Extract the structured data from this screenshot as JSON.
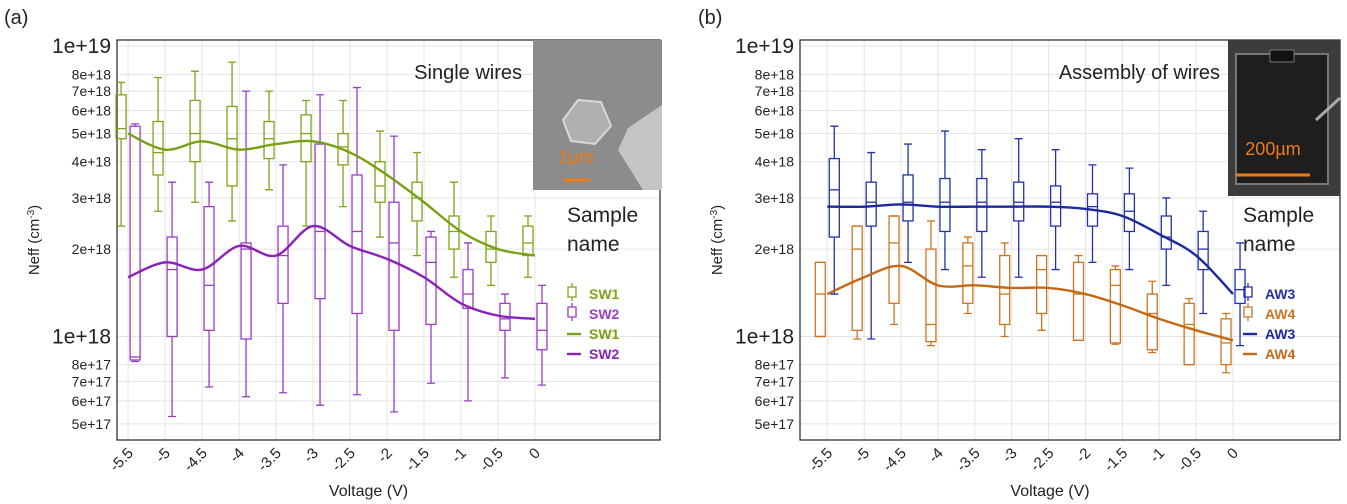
{
  "chart_data": [
    {
      "type": "box",
      "panel_label": "(a)",
      "annotation": "Single wires",
      "inset_label": "1µm",
      "ylabel": [
        "Neff (cm",
        "-3",
        ")"
      ],
      "xlabel": "Voltage (V)",
      "legend_title": [
        "Sample",
        "name"
      ],
      "ylog": true,
      "grid": true,
      "x": [
        -5.5,
        -5,
        -4.5,
        -4,
        -3.5,
        -3,
        -2.5,
        -2,
        -1.5,
        -1,
        -0.5,
        0
      ],
      "xlim": [
        -5.65,
        1.69
      ],
      "xticks": [
        -5.5,
        -5,
        -4.5,
        -4,
        -3.5,
        -3,
        -2.5,
        -2,
        -1.5,
        -1,
        -0.5,
        0
      ],
      "ylim": [
        4.4e+17,
        1.05e+19
      ],
      "yticks": [
        {
          "value": 1e+19,
          "label": "1e+19"
        },
        {
          "value": 8e+18,
          "label": "8e+18"
        },
        {
          "value": 7e+18,
          "label": "7e+18"
        },
        {
          "value": 6e+18,
          "label": "6e+18"
        },
        {
          "value": 5e+18,
          "label": "5e+18"
        },
        {
          "value": 4e+18,
          "label": "4e+18"
        },
        {
          "value": 3e+18,
          "label": "3e+18"
        },
        {
          "value": 2e+18,
          "label": "2e+18"
        },
        {
          "value": 1e+18,
          "label": "1e+18"
        },
        {
          "value": 8e+17,
          "label": "8e+17"
        },
        {
          "value": 7e+17,
          "label": "7e+17"
        },
        {
          "value": 6e+17,
          "label": "6e+17"
        },
        {
          "value": 5e+17,
          "label": "5e+17"
        }
      ],
      "series": [
        {
          "name": "SW1",
          "color": "#7fa31a",
          "min": [
            2.4e+18,
            2.7e+18,
            2.9e+18,
            2.5e+18,
            3.2e+18,
            2.4e+18,
            2.8e+18,
            2.2e+18,
            1.9e+18,
            1.6e+18,
            1.5e+18,
            1.6e+18
          ],
          "q1": [
            4.8e+18,
            3.6e+18,
            4e+18,
            3.3e+18,
            4.1e+18,
            4e+18,
            3.9e+18,
            2.9e+18,
            2.5e+18,
            2e+18,
            1.8e+18,
            1.9e+18
          ],
          "median": [
            5.2e+18,
            4.3e+18,
            5e+18,
            4.8e+18,
            4.8e+18,
            5e+18,
            4.5e+18,
            3.3e+18,
            3e+18,
            2.3e+18,
            2e+18,
            2.1e+18
          ],
          "q3": [
            6.8e+18,
            5.5e+18,
            6.5e+18,
            6.2e+18,
            5.5e+18,
            5.8e+18,
            5e+18,
            4e+18,
            3.4e+18,
            2.6e+18,
            2.3e+18,
            2.4e+18
          ],
          "max": [
            7.5e+18,
            7.8e+18,
            8.2e+18,
            8.8e+18,
            7e+18,
            6.5e+18,
            6.5e+18,
            5.1e+18,
            4.3e+18,
            3.4e+18,
            2.6e+18,
            2.6e+18
          ]
        },
        {
          "name": "SW2",
          "color": "#9a3cc4",
          "min": [
            8.2e+17,
            5.3e+17,
            6.7e+17,
            6.2e+17,
            6.4e+17,
            5.8e+17,
            6.3e+17,
            5.5e+17,
            6.9e+17,
            6e+17,
            7.2e+17,
            6.8e+17
          ],
          "q1": [
            8.3e+17,
            1e+18,
            1.05e+18,
            9.8e+17,
            1.3e+18,
            1.35e+18,
            1.2e+18,
            1.05e+18,
            1.1e+18,
            1.25e+18,
            1.05e+18,
            9e+17
          ],
          "median": [
            8.5e+17,
            1.7e+18,
            1.5e+18,
            2e+18,
            1.9e+18,
            2.3e+18,
            2.3e+18,
            2.1e+18,
            1.8e+18,
            1.4e+18,
            1.15e+18,
            1.05e+18
          ],
          "q3": [
            5.3e+18,
            2.2e+18,
            2.8e+18,
            2.1e+18,
            2.4e+18,
            4.6e+18,
            3.6e+18,
            2.9e+18,
            2.2e+18,
            1.7e+18,
            1.3e+18,
            1.3e+18
          ],
          "max": [
            5.4e+18,
            3.4e+18,
            3.4e+18,
            7e+18,
            3.9e+18,
            6.8e+18,
            7.2e+18,
            4.9e+18,
            2.3e+18,
            2.1e+18,
            1.4e+18,
            1.5e+18
          ]
        }
      ],
      "lines": [
        {
          "name": "SW1",
          "color": "#76a112",
          "values": [
            5e+18,
            4.4e+18,
            4.7e+18,
            4.4e+18,
            4.6e+18,
            4.7e+18,
            4.3e+18,
            3.6e+18,
            2.9e+18,
            2.3e+18,
            2e+18,
            1.9e+18
          ]
        },
        {
          "name": "SW2",
          "color": "#8a22b8",
          "values": [
            1.6e+18,
            1.8e+18,
            1.7e+18,
            2.05e+18,
            1.9e+18,
            2.4e+18,
            2.05e+18,
            1.85e+18,
            1.6e+18,
            1.3e+18,
            1.18e+18,
            1.15e+18
          ]
        }
      ]
    },
    {
      "type": "box",
      "panel_label": "(b)",
      "annotation": "Assembly of wires",
      "inset_label": "200µm",
      "ylabel": [
        "Neff (cm",
        "-3",
        ")"
      ],
      "xlabel": "Voltage (V)",
      "legend_title": [
        "Sample",
        "name"
      ],
      "ylog": true,
      "grid": true,
      "x": [
        -5.5,
        -5,
        -4.5,
        -4,
        -3.5,
        -3,
        -2.5,
        -2,
        -1.5,
        -1,
        -0.5,
        0
      ],
      "xlim": [
        -5.87,
        1.45
      ],
      "xticks": [
        -5.5,
        -5,
        -4.5,
        -4,
        -3.5,
        -3,
        -2.5,
        -2,
        -1.5,
        -1,
        -0.5,
        0
      ],
      "ylim": [
        4.4e+17,
        1.05e+19
      ],
      "yticks": [
        {
          "value": 1e+19,
          "label": "1e+19"
        },
        {
          "value": 8e+18,
          "label": "8e+18"
        },
        {
          "value": 7e+18,
          "label": "7e+18"
        },
        {
          "value": 6e+18,
          "label": "6e+18"
        },
        {
          "value": 5e+18,
          "label": "5e+18"
        },
        {
          "value": 4e+18,
          "label": "4e+18"
        },
        {
          "value": 3e+18,
          "label": "3e+18"
        },
        {
          "value": 2e+18,
          "label": "2e+18"
        },
        {
          "value": 1e+18,
          "label": "1e+18"
        },
        {
          "value": 8e+17,
          "label": "8e+17"
        },
        {
          "value": 7e+17,
          "label": "7e+17"
        },
        {
          "value": 6e+17,
          "label": "6e+17"
        },
        {
          "value": 5e+17,
          "label": "5e+17"
        }
      ],
      "series": [
        {
          "name": "AW3",
          "color": "#2233a6",
          "min": [
            1.4e+18,
            9.8e+17,
            1.8e+18,
            1.7e+18,
            1.6e+18,
            1.6e+18,
            1.7e+18,
            1.8e+18,
            1.7e+18,
            1.5e+18,
            1.2e+18,
            9.3e+17
          ],
          "q1": [
            2.2e+18,
            2.4e+18,
            2.5e+18,
            2.3e+18,
            2.3e+18,
            2.5e+18,
            2.4e+18,
            2.4e+18,
            2.3e+18,
            2e+18,
            1.7e+18,
            1.3e+18
          ],
          "median": [
            3.2e+18,
            2.9e+18,
            2.9e+18,
            2.9e+18,
            2.9e+18,
            2.9e+18,
            2.9e+18,
            2.8e+18,
            2.7e+18,
            2.2e+18,
            2e+18,
            1.45e+18
          ],
          "q3": [
            4.1e+18,
            3.4e+18,
            3.6e+18,
            3.5e+18,
            3.5e+18,
            3.4e+18,
            3.3e+18,
            3.1e+18,
            3.1e+18,
            2.6e+18,
            2.3e+18,
            1.7e+18
          ],
          "max": [
            5.3e+18,
            4.3e+18,
            4.6e+18,
            5.1e+18,
            4.4e+18,
            4.8e+18,
            4.4e+18,
            3.9e+18,
            3.8e+18,
            3e+18,
            2.7e+18,
            2.1e+18
          ]
        },
        {
          "name": "AW4",
          "color": "#cc7420",
          "min": [
            1e+18,
            9.8e+17,
            1.1e+18,
            9.3e+17,
            1.2e+18,
            1e+18,
            1.05e+18,
            9.7e+17,
            9.4e+17,
            8.8e+17,
            8e+17,
            7.5e+17
          ],
          "q1": [
            1e+18,
            1.05e+18,
            1.3e+18,
            9.6e+17,
            1.3e+18,
            1.1e+18,
            1.2e+18,
            9.7e+17,
            9.5e+17,
            9e+17,
            8e+17,
            8e+17
          ],
          "median": [
            1.4e+18,
            2e+18,
            2.1e+18,
            1.1e+18,
            1.75e+18,
            1.4e+18,
            1.7e+18,
            1.4e+18,
            1.5e+18,
            1.2e+18,
            1.1e+18,
            9.5e+17
          ],
          "q3": [
            1.8e+18,
            2.4e+18,
            2.6e+18,
            2e+18,
            2.1e+18,
            1.9e+18,
            1.9e+18,
            1.8e+18,
            1.7e+18,
            1.4e+18,
            1.3e+18,
            1.15e+18
          ],
          "max": [
            1.8e+18,
            2.4e+18,
            2.6e+18,
            2.5e+18,
            2.2e+18,
            2.1e+18,
            1.9e+18,
            1.9e+18,
            1.75e+18,
            1.55e+18,
            1.35e+18,
            1.2e+18
          ]
        }
      ],
      "lines": [
        {
          "name": "AW3",
          "color": "#1a2a9e",
          "values": [
            2.8e+18,
            2.8e+18,
            2.85e+18,
            2.8e+18,
            2.8e+18,
            2.8e+18,
            2.8e+18,
            2.75e+18,
            2.6e+18,
            2.25e+18,
            1.9e+18,
            1.4e+18
          ]
        },
        {
          "name": "AW4",
          "color": "#c46a14",
          "values": [
            1.4e+18,
            1.6e+18,
            1.75e+18,
            1.5e+18,
            1.5e+18,
            1.47e+18,
            1.47e+18,
            1.4e+18,
            1.28e+18,
            1.15e+18,
            1.05e+18,
            9.7e+17
          ]
        }
      ]
    }
  ]
}
